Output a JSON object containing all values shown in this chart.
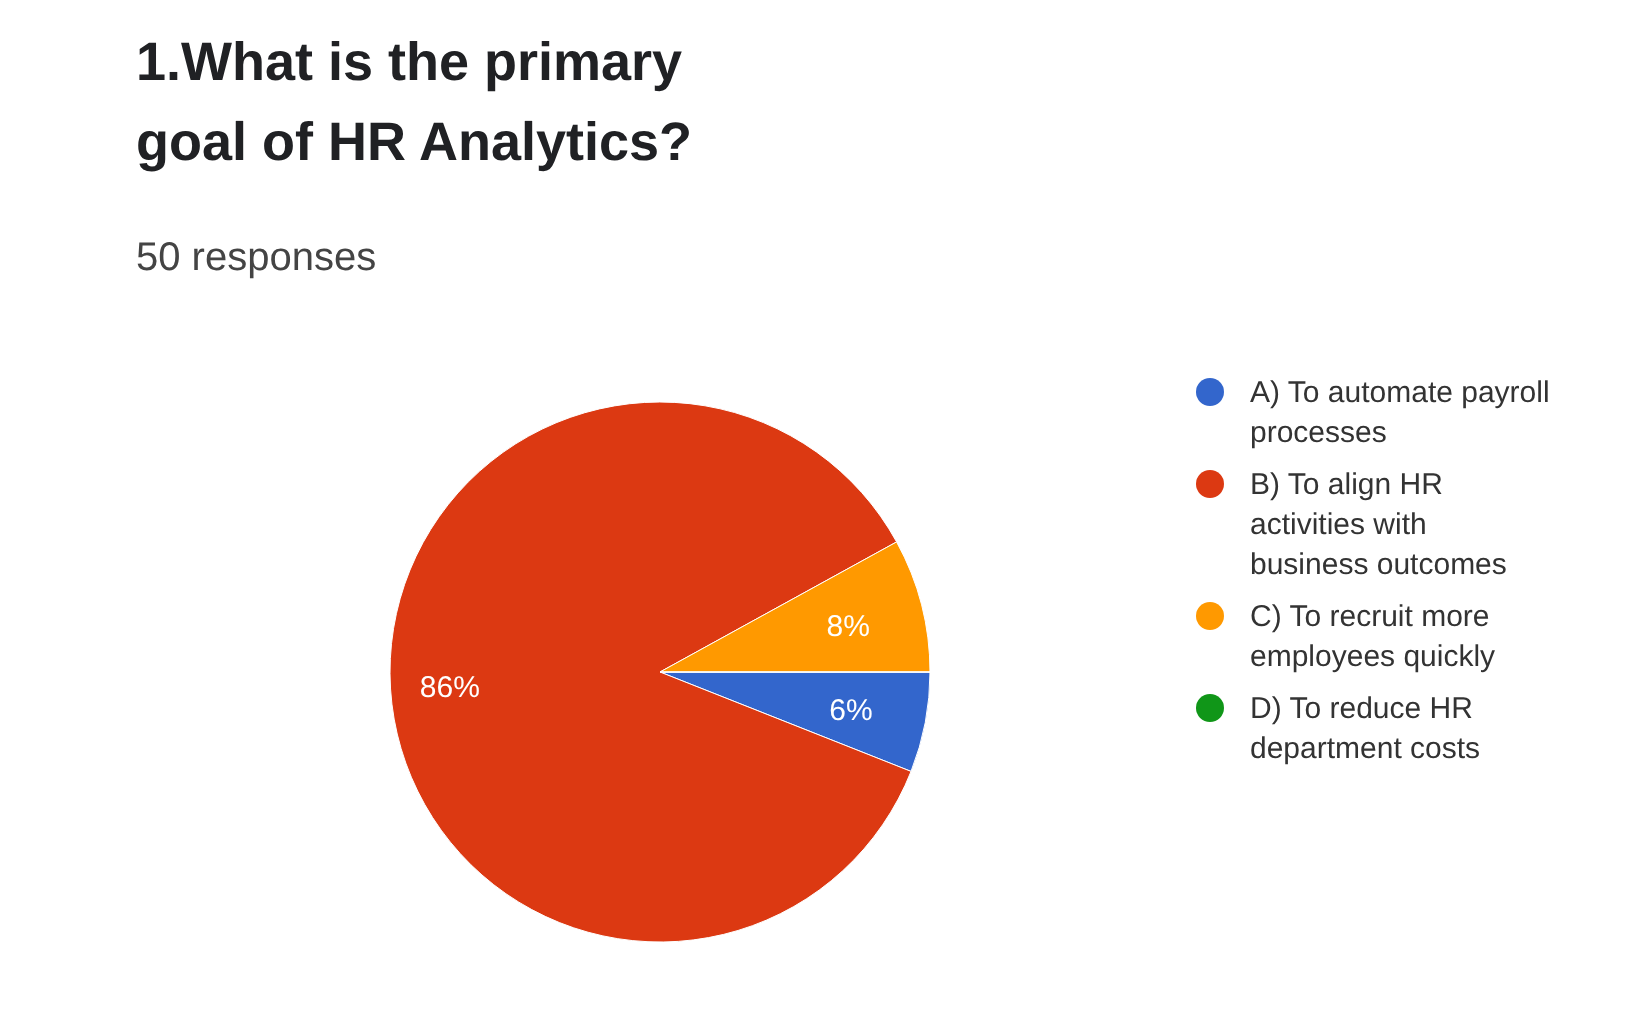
{
  "chart_data": {
    "type": "pie",
    "title": "1.What is the primary goal of HR Analytics?",
    "subtitle": "50 responses",
    "categories": [
      "A) To automate payroll processes",
      "B) To align HR activities with business outcomes",
      "C) To recruit more employees quickly",
      "D) To reduce HR department costs"
    ],
    "values": [
      6,
      86,
      8,
      0
    ],
    "colors": [
      "#3366cc",
      "#dc3912",
      "#ff9900",
      "#109618"
    ],
    "value_labels": [
      "6%",
      "86%",
      "8%",
      null
    ],
    "legend": "right"
  }
}
